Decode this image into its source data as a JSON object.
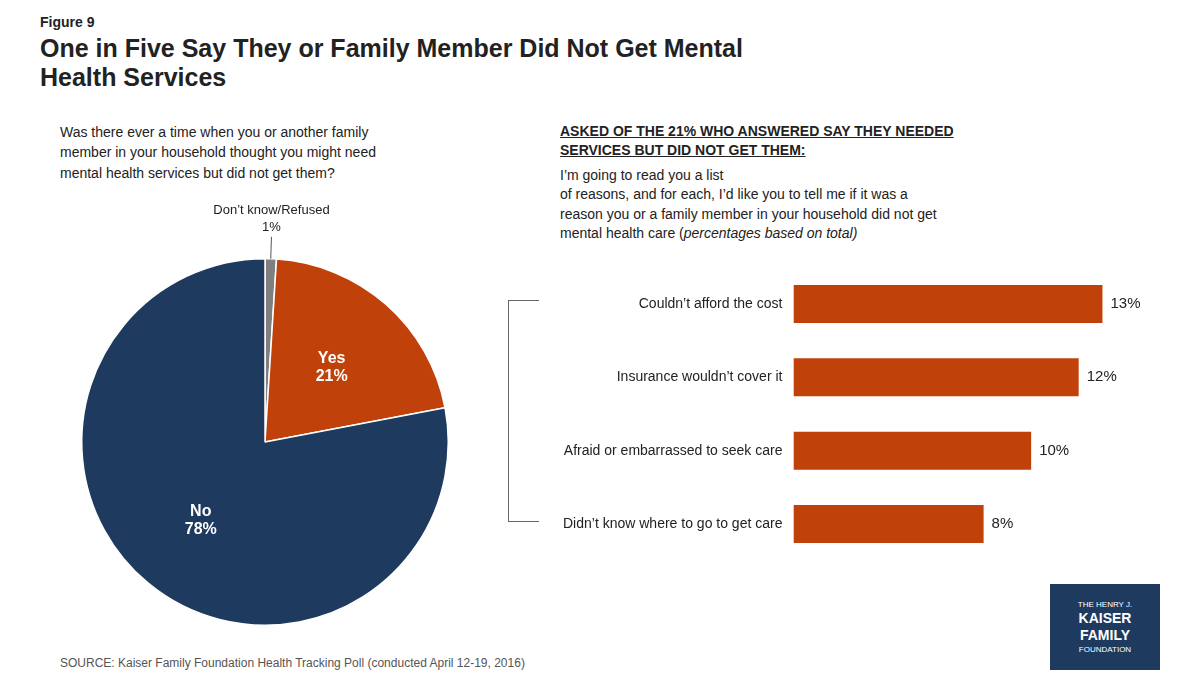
{
  "chart_data": [
    {
      "type": "pie",
      "title": "One in Five Say They or Family Member Did Not Get Mental\nHealth Services",
      "subtitle": "Figure 9",
      "annotations": [
        "Was there ever a time when you or another family\nmember in your household thought you might need\nmental health services but did not get them?",
        "SOURCE: Kaiser Family Foundation Health Tracking Poll (conducted April 12-19, 2016)",
        "THE HENRY J.",
        "KAISER",
        "FAMILY",
        "FOUNDATION"
      ],
      "categories": [
        "Don’t know/Refused",
        "Yes",
        "No"
      ],
      "values": [
        1,
        21,
        78
      ],
      "colors": [
        "#7f7f7f",
        "#c0420a",
        "#1e3a5f"
      ],
      "data_labels": true,
      "value_labels": [
        "1%",
        "21%",
        "78%"
      ]
    },
    {
      "type": "bar",
      "orientation": "horizontal",
      "title": "ASKED OF THE 21% WHO ANSWERED SAY THEY NEEDED\nSERVICES BUT DID NOT GET THEM:",
      "annotations": [
        " I’m going to read you a list\nof reasons, and for each, I’d like you to tell me if it was a\nreason you or a family member in your household did not get\nmental health care (",
        "percentages based on total)"
      ],
      "categories": [
        "Couldn’t afford the cost",
        "Insurance wouldn’t cover it",
        "Afraid or embarrassed to seek care",
        "Didn’t know where to go to get care"
      ],
      "values": [
        13,
        12,
        10,
        8
      ],
      "color": "#c0420a",
      "xlim": [
        0,
        15
      ],
      "grid": false,
      "tick_labels": "y",
      "data_labels": true,
      "value_labels": [
        "13%",
        "12%",
        "10%",
        "8%"
      ]
    }
  ]
}
